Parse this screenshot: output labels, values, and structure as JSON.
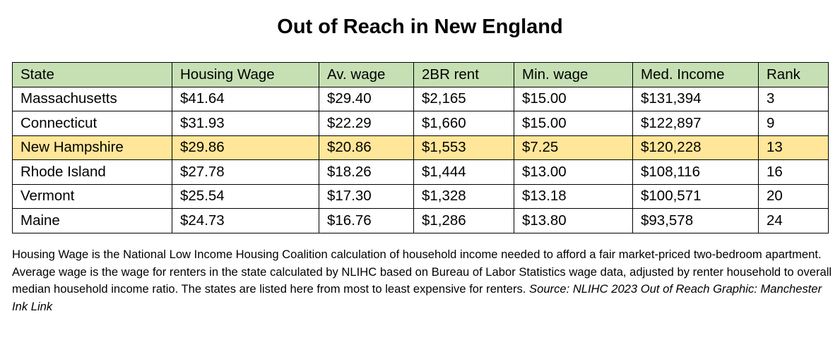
{
  "title": "Out of Reach in New England",
  "colors": {
    "header_bg": "#C6E0B4",
    "highlight_bg": "#FFE699",
    "border": "#000000"
  },
  "chart_data": {
    "type": "table",
    "title": "Out of Reach in New England",
    "columns": [
      "State",
      "Housing Wage",
      "Av. wage",
      "2BR rent",
      "Min. wage",
      "Med. Income",
      "Rank"
    ],
    "rows": [
      [
        "Massachusetts",
        "$41.64",
        "$29.40",
        "$2,165",
        "$15.00",
        "$131,394",
        "3"
      ],
      [
        "Connecticut",
        "$31.93",
        "$22.29",
        "$1,660",
        "$15.00",
        "$122,897",
        "9"
      ],
      [
        "New Hampshire",
        "$29.86",
        "$20.86",
        "$1,553",
        "$7.25",
        "$120,228",
        "13"
      ],
      [
        "Rhode Island",
        "$27.78",
        "$18.26",
        "$1,444",
        "$13.00",
        "$108,116",
        "16"
      ],
      [
        "Vermont",
        "$25.54",
        "$17.30",
        "$1,328",
        "$13.18",
        "$100,571",
        "20"
      ],
      [
        "Maine",
        "$24.73",
        "$16.76",
        "$1,286",
        "$13.80",
        "$93,578",
        "24"
      ]
    ],
    "highlighted_row": "New Hampshire"
  },
  "footnote": {
    "text": "Housing Wage is the National Low Income Housing Coalition calculation of household income needed to afford a fair market-priced two-bedroom apartment. Average wage is the wage for renters in the state calculated by NLIHC based on Bureau of Labor Statistics wage data, adjusted by renter household to overall median household income ratio. The states are listed here from most to least expensive for renters. ",
    "source": "Source: NLIHC 2023 Out of Reach Graphic: Manchester Ink Link"
  }
}
